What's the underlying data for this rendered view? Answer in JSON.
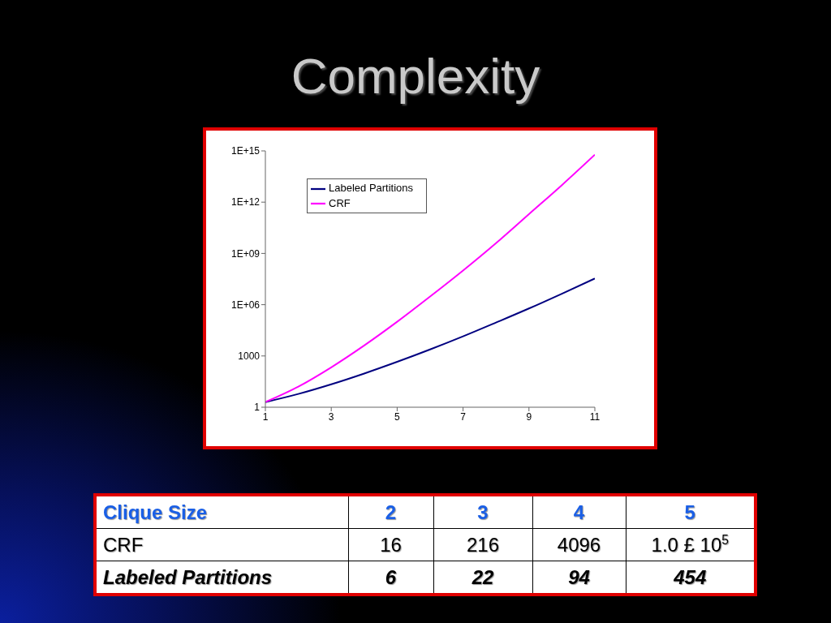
{
  "chart_data": [
    {
      "type": "line",
      "title": "Complexity",
      "x": [
        1,
        2,
        3,
        4,
        5,
        6,
        7,
        8,
        9,
        10,
        11
      ],
      "series": [
        {
          "name": "Labeled Partitions",
          "color": "#000080",
          "values": [
            2,
            6,
            22,
            94,
            454,
            2400,
            14000,
            90000,
            600000,
            4400000,
            34000000
          ]
        },
        {
          "name": "CRF",
          "color": "#ff00ff",
          "values": [
            2,
            16,
            216,
            4096,
            100000,
            3000000,
            100000000,
            4000000000,
            200000000000,
            10000000000000,
            600000000000000
          ]
        }
      ],
      "xlim": [
        1,
        11
      ],
      "xticks": [
        1,
        3,
        5,
        7,
        9,
        11
      ],
      "ylim": [
        1,
        1000000000000000
      ],
      "yticks": [
        1,
        1000,
        {
          "value": 1000000,
          "label": "1E+06"
        },
        {
          "value": 1000000000,
          "label": "1E+09"
        },
        {
          "value": 1000000000000,
          "label": "1E+12"
        },
        {
          "value": 1000000000000000,
          "label": "1E+15"
        }
      ],
      "log": "y",
      "legend": "top left",
      "marker": "none",
      "line_style": "solid"
    },
    {
      "type": "heatmap",
      "xlabel": "Clique Size",
      "categories": [
        "2",
        "3",
        "4",
        "5"
      ],
      "y_categories": [
        "CRF",
        "Labeled Partitions"
      ],
      "cells": [
        [
          16,
          216,
          4096,
          null
        ],
        [
          6,
          22,
          94,
          454
        ]
      ],
      "data_labels": true,
      "annotations": [
        "1.0 £ 10$^{5}$"
      ]
    }
  ]
}
